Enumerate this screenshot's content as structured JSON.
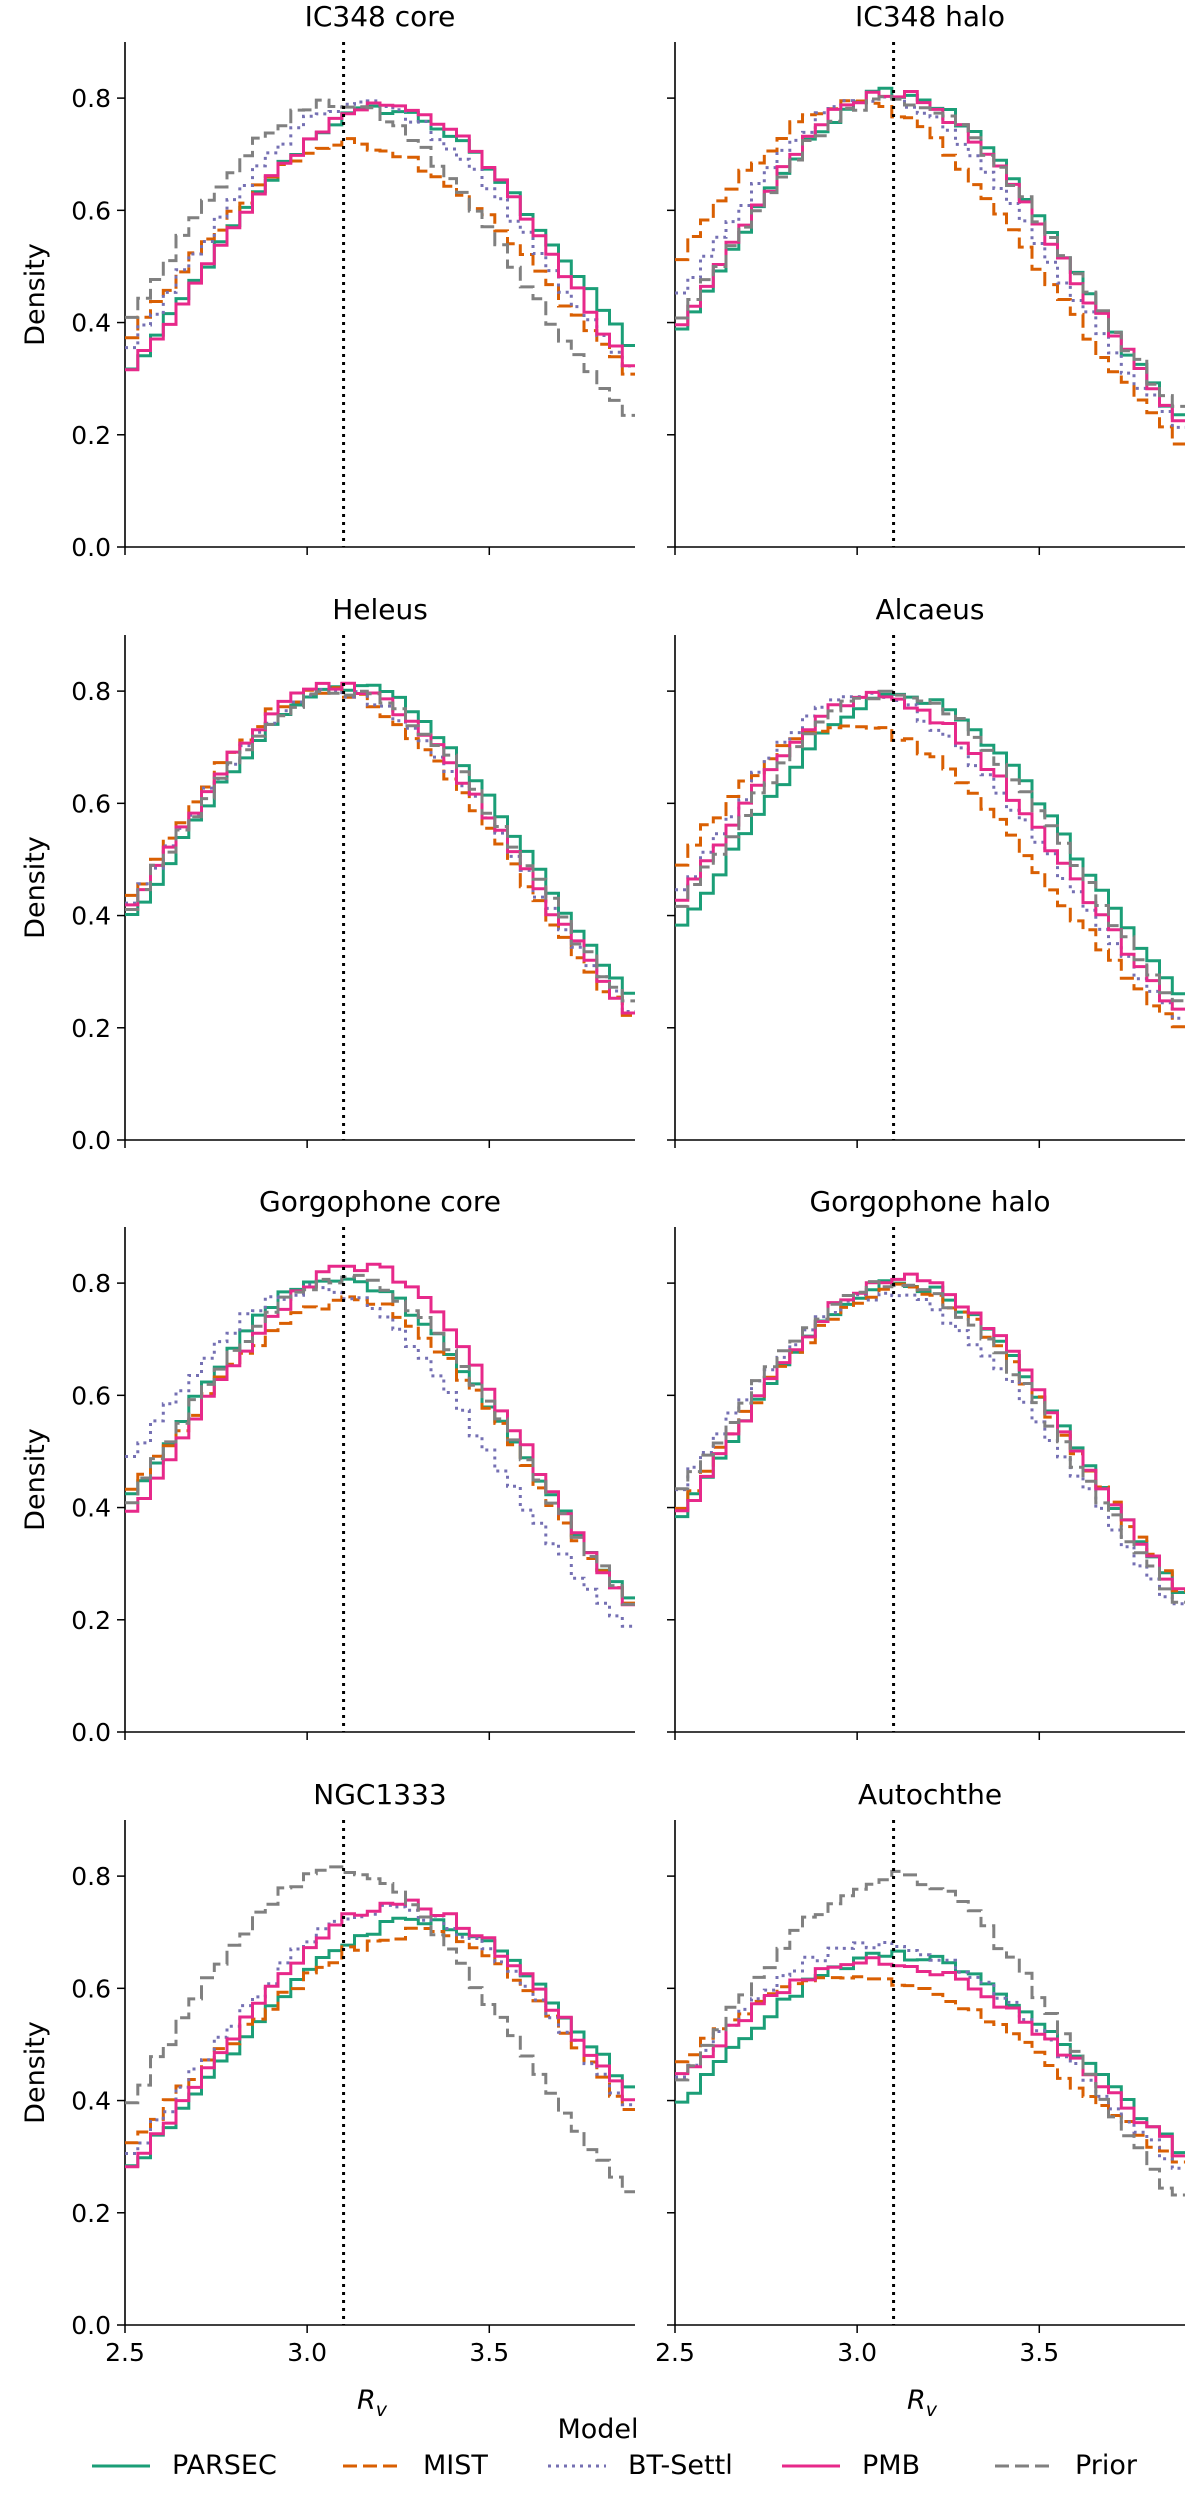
{
  "chart_data": {
    "type": "line",
    "xlabel_main": "R",
    "xlabel_sub": "v",
    "ylabel": "Density",
    "xlim": [
      2.5,
      3.9
    ],
    "ylim": [
      0.0,
      0.9
    ],
    "xticks": [
      2.5,
      3.0,
      3.5
    ],
    "xtick_labels": [
      "2.5",
      "3.0",
      "3.5"
    ],
    "yticks": [
      0.0,
      0.2,
      0.4,
      0.6,
      0.8
    ],
    "ytick_labels": [
      "0.0",
      "0.2",
      "0.4",
      "0.6",
      "0.8"
    ],
    "reference_line_x": 3.1,
    "legend": {
      "title": "Model",
      "placement": "bottom-center",
      "entries": [
        {
          "name": "PARSEC",
          "color": "#1b9e77",
          "style": "solid"
        },
        {
          "name": "MIST",
          "color": "#d95f02",
          "style": "dashed"
        },
        {
          "name": "BT-Settl",
          "color": "#7570b3",
          "style": "dotted"
        },
        {
          "name": "PMB",
          "color": "#e7298a",
          "style": "solid"
        },
        {
          "name": "Prior",
          "color": "#808080",
          "style": "dashed"
        }
      ]
    },
    "panels": [
      {
        "title": "IC348 core",
        "series": [
          {
            "name": "PARSEC",
            "peak": 3.2,
            "peak_y": 0.78,
            "left_y": 0.3,
            "right_y": 0.35
          },
          {
            "name": "MIST",
            "peak": 3.12,
            "peak_y": 0.72,
            "left_y": 0.36,
            "right_y": 0.3
          },
          {
            "name": "BT-Settl",
            "peak": 3.15,
            "peak_y": 0.79,
            "left_y": 0.34,
            "right_y": 0.3
          },
          {
            "name": "PMB",
            "peak": 3.22,
            "peak_y": 0.79,
            "left_y": 0.3,
            "right_y": 0.31
          },
          {
            "name": "Prior",
            "peak": 3.08,
            "peak_y": 0.79,
            "left_y": 0.4,
            "right_y": 0.22
          }
        ]
      },
      {
        "title": "IC348 halo",
        "series": [
          {
            "name": "PARSEC",
            "peak": 3.1,
            "peak_y": 0.81,
            "left_y": 0.37,
            "right_y": 0.22
          },
          {
            "name": "MIST",
            "peak": 3.0,
            "peak_y": 0.79,
            "left_y": 0.5,
            "right_y": 0.18
          },
          {
            "name": "BT-Settl",
            "peak": 3.05,
            "peak_y": 0.8,
            "left_y": 0.43,
            "right_y": 0.2
          },
          {
            "name": "PMB",
            "peak": 3.08,
            "peak_y": 0.81,
            "left_y": 0.37,
            "right_y": 0.22
          },
          {
            "name": "Prior",
            "peak": 3.1,
            "peak_y": 0.8,
            "left_y": 0.39,
            "right_y": 0.23
          }
        ]
      },
      {
        "title": "Heleus",
        "series": [
          {
            "name": "PARSEC",
            "peak": 3.12,
            "peak_y": 0.81,
            "left_y": 0.38,
            "right_y": 0.24
          },
          {
            "name": "MIST",
            "peak": 3.05,
            "peak_y": 0.8,
            "left_y": 0.41,
            "right_y": 0.21
          },
          {
            "name": "BT-Settl",
            "peak": 3.08,
            "peak_y": 0.8,
            "left_y": 0.4,
            "right_y": 0.22
          },
          {
            "name": "PMB",
            "peak": 3.08,
            "peak_y": 0.81,
            "left_y": 0.4,
            "right_y": 0.22
          },
          {
            "name": "Prior",
            "peak": 3.1,
            "peak_y": 0.8,
            "left_y": 0.4,
            "right_y": 0.23
          }
        ]
      },
      {
        "title": "Alcaeus",
        "series": [
          {
            "name": "PARSEC",
            "peak": 3.12,
            "peak_y": 0.79,
            "left_y": 0.36,
            "right_y": 0.25
          },
          {
            "name": "MIST",
            "peak": 2.98,
            "peak_y": 0.74,
            "left_y": 0.48,
            "right_y": 0.19
          },
          {
            "name": "BT-Settl",
            "peak": 3.02,
            "peak_y": 0.79,
            "left_y": 0.42,
            "right_y": 0.21
          },
          {
            "name": "PMB",
            "peak": 3.05,
            "peak_y": 0.79,
            "left_y": 0.41,
            "right_y": 0.22
          },
          {
            "name": "Prior",
            "peak": 3.1,
            "peak_y": 0.8,
            "left_y": 0.4,
            "right_y": 0.23
          }
        ]
      },
      {
        "title": "Gorgophone core",
        "series": [
          {
            "name": "PARSEC",
            "peak": 3.08,
            "peak_y": 0.81,
            "left_y": 0.4,
            "right_y": 0.23
          },
          {
            "name": "MIST",
            "peak": 3.12,
            "peak_y": 0.77,
            "left_y": 0.41,
            "right_y": 0.22
          },
          {
            "name": "BT-Settl",
            "peak": 3.02,
            "peak_y": 0.79,
            "left_y": 0.47,
            "right_y": 0.17
          },
          {
            "name": "PMB",
            "peak": 3.15,
            "peak_y": 0.83,
            "left_y": 0.37,
            "right_y": 0.21
          },
          {
            "name": "Prior",
            "peak": 3.1,
            "peak_y": 0.81,
            "left_y": 0.4,
            "right_y": 0.22
          }
        ]
      },
      {
        "title": "Gorgophone halo",
        "series": [
          {
            "name": "PARSEC",
            "peak": 3.12,
            "peak_y": 0.8,
            "left_y": 0.37,
            "right_y": 0.24
          },
          {
            "name": "MIST",
            "peak": 3.12,
            "peak_y": 0.79,
            "left_y": 0.39,
            "right_y": 0.24
          },
          {
            "name": "BT-Settl",
            "peak": 3.08,
            "peak_y": 0.78,
            "left_y": 0.42,
            "right_y": 0.21
          },
          {
            "name": "PMB",
            "peak": 3.12,
            "peak_y": 0.81,
            "left_y": 0.37,
            "right_y": 0.24
          },
          {
            "name": "Prior",
            "peak": 3.1,
            "peak_y": 0.8,
            "left_y": 0.41,
            "right_y": 0.22
          }
        ]
      },
      {
        "title": "NGC1333",
        "series": [
          {
            "name": "PARSEC",
            "peak": 3.3,
            "peak_y": 0.72,
            "left_y": 0.27,
            "right_y": 0.41
          },
          {
            "name": "MIST",
            "peak": 3.32,
            "peak_y": 0.7,
            "left_y": 0.32,
            "right_y": 0.37
          },
          {
            "name": "BT-Settl",
            "peak": 3.22,
            "peak_y": 0.74,
            "left_y": 0.29,
            "right_y": 0.38
          },
          {
            "name": "PMB",
            "peak": 3.25,
            "peak_y": 0.75,
            "left_y": 0.27,
            "right_y": 0.39
          },
          {
            "name": "Prior",
            "peak": 3.08,
            "peak_y": 0.81,
            "left_y": 0.38,
            "right_y": 0.22
          }
        ]
      },
      {
        "title": "Autochthe",
        "series": [
          {
            "name": "PARSEC",
            "peak": 3.1,
            "peak_y": 0.66,
            "left_y": 0.38,
            "right_y": 0.3
          },
          {
            "name": "MIST",
            "peak": 2.98,
            "peak_y": 0.62,
            "left_y": 0.46,
            "right_y": 0.28
          },
          {
            "name": "BT-Settl",
            "peak": 3.05,
            "peak_y": 0.68,
            "left_y": 0.43,
            "right_y": 0.27
          },
          {
            "name": "PMB",
            "peak": 3.05,
            "peak_y": 0.65,
            "left_y": 0.43,
            "right_y": 0.3
          },
          {
            "name": "Prior",
            "peak": 3.12,
            "peak_y": 0.8,
            "left_y": 0.42,
            "right_y": 0.21
          }
        ]
      }
    ]
  }
}
